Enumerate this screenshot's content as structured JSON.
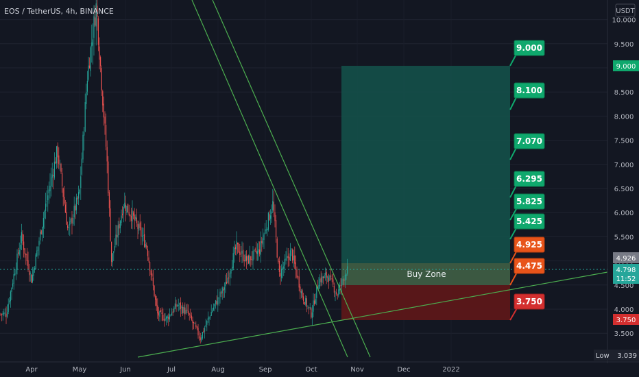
{
  "header": {
    "symbol_info": "EOS / TetherUS, 4h, BINANCE",
    "currency": "USDT"
  },
  "price_axis": {
    "ticks": [
      "10.000",
      "9.500",
      "9.000",
      "8.500",
      "8.000",
      "7.500",
      "7.000",
      "6.500",
      "6.000",
      "5.500",
      "5.000",
      "4.500",
      "4.000",
      "3.500"
    ],
    "tick_values": [
      10.0,
      9.5,
      9.0,
      8.5,
      8.0,
      7.5,
      7.0,
      6.5,
      6.0,
      5.5,
      5.0,
      4.5,
      4.0,
      3.5
    ]
  },
  "time_axis": {
    "labels": [
      "Apr",
      "May",
      "Jun",
      "Jul",
      "Aug",
      "Sep",
      "Oct",
      "Nov",
      "Dec",
      "2022"
    ]
  },
  "axis_badges": {
    "target_high": "9.000",
    "last_price": "4.926",
    "current_price": "4.798",
    "countdown": "11:52",
    "stop": "3.750",
    "low_label": "Low",
    "low_value": "3.039"
  },
  "zones": {
    "buy_zone_label": "Buy Zone",
    "buy_zone_top": 4.925,
    "buy_zone_bottom": 4.475,
    "stop": 3.75,
    "target": 9.0
  },
  "callouts": [
    {
      "text": "9.000",
      "price": 9.0,
      "kind": "target"
    },
    {
      "text": "8.100",
      "price": 8.1,
      "kind": "target"
    },
    {
      "text": "7.070",
      "price": 7.07,
      "kind": "target"
    },
    {
      "text": "6.295",
      "price": 6.295,
      "kind": "target"
    },
    {
      "text": "5.825",
      "price": 5.825,
      "kind": "target"
    },
    {
      "text": "5.425",
      "price": 5.425,
      "kind": "target"
    },
    {
      "text": "4.925",
      "price": 4.925,
      "kind": "entry"
    },
    {
      "text": "4.475",
      "price": 4.475,
      "kind": "entry"
    },
    {
      "text": "3.750",
      "price": 3.75,
      "kind": "stop"
    }
  ],
  "colors": {
    "background": "#131722",
    "up": "#26a69a",
    "down": "#ef5350",
    "trendline": "#4caf50",
    "target_zone": "#145049",
    "stop_zone": "#5c1719",
    "target_callout": "#0fa86d",
    "entry_callout": "#e8541a",
    "stop_callout": "#d32f2f"
  },
  "chart_data": {
    "type": "line",
    "title": "EOS / TetherUS, 4h, BINANCE",
    "ylabel": "USDT",
    "ylim": [
      3.0,
      10.4
    ],
    "x": [
      "Apr",
      "May",
      "Jun",
      "Jul",
      "Aug",
      "Sep",
      "Oct",
      "Nov"
    ],
    "approx_trend": [
      {
        "date": "Mar 15",
        "close": 3.9
      },
      {
        "date": "Mar 25",
        "close": 5.5
      },
      {
        "date": "Apr 1",
        "close": 4.6
      },
      {
        "date": "Apr 10",
        "close": 6.1
      },
      {
        "date": "Apr 18",
        "close": 7.3
      },
      {
        "date": "Apr 25",
        "close": 5.6
      },
      {
        "date": "May 1",
        "close": 6.4
      },
      {
        "date": "May 6",
        "close": 8.8
      },
      {
        "date": "May 12",
        "close": 10.3
      },
      {
        "date": "May 19",
        "close": 7.1
      },
      {
        "date": "May 22",
        "close": 5.0
      },
      {
        "date": "May 30",
        "close": 6.2
      },
      {
        "date": "Jun 6",
        "close": 5.9
      },
      {
        "date": "Jun 15",
        "close": 5.3
      },
      {
        "date": "Jun 22",
        "close": 3.9
      },
      {
        "date": "Jun 28",
        "close": 3.8
      },
      {
        "date": "Jul 5",
        "close": 4.1
      },
      {
        "date": "Jul 12",
        "close": 3.9
      },
      {
        "date": "Jul 20",
        "close": 3.4
      },
      {
        "date": "Jul 28",
        "close": 4.0
      },
      {
        "date": "Aug 6",
        "close": 4.5
      },
      {
        "date": "Aug 13",
        "close": 5.3
      },
      {
        "date": "Aug 20",
        "close": 5.0
      },
      {
        "date": "Aug 28",
        "close": 5.2
      },
      {
        "date": "Sep 6",
        "close": 6.2
      },
      {
        "date": "Sep 10",
        "close": 4.7
      },
      {
        "date": "Sep 18",
        "close": 5.2
      },
      {
        "date": "Sep 25",
        "close": 4.3
      },
      {
        "date": "Oct 1",
        "close": 3.9
      },
      {
        "date": "Oct 6",
        "close": 4.6
      },
      {
        "date": "Oct 12",
        "close": 4.7
      },
      {
        "date": "Oct 18",
        "close": 4.3
      },
      {
        "date": "Oct 24",
        "close": 4.8
      }
    ],
    "trendlines": [
      {
        "from": {
          "date": "Jun 10",
          "price": 3.0
        },
        "to": {
          "date": "Jan 15",
          "price": 4.8
        }
      },
      {
        "from": {
          "date": "May 22",
          "price": 11.5
        },
        "to": {
          "date": "Oct 28",
          "price": 3.0
        }
      },
      {
        "from": {
          "date": "Jun 1",
          "price": 11.5
        },
        "to": {
          "date": "Nov 1",
          "price": 3.0
        }
      }
    ]
  }
}
